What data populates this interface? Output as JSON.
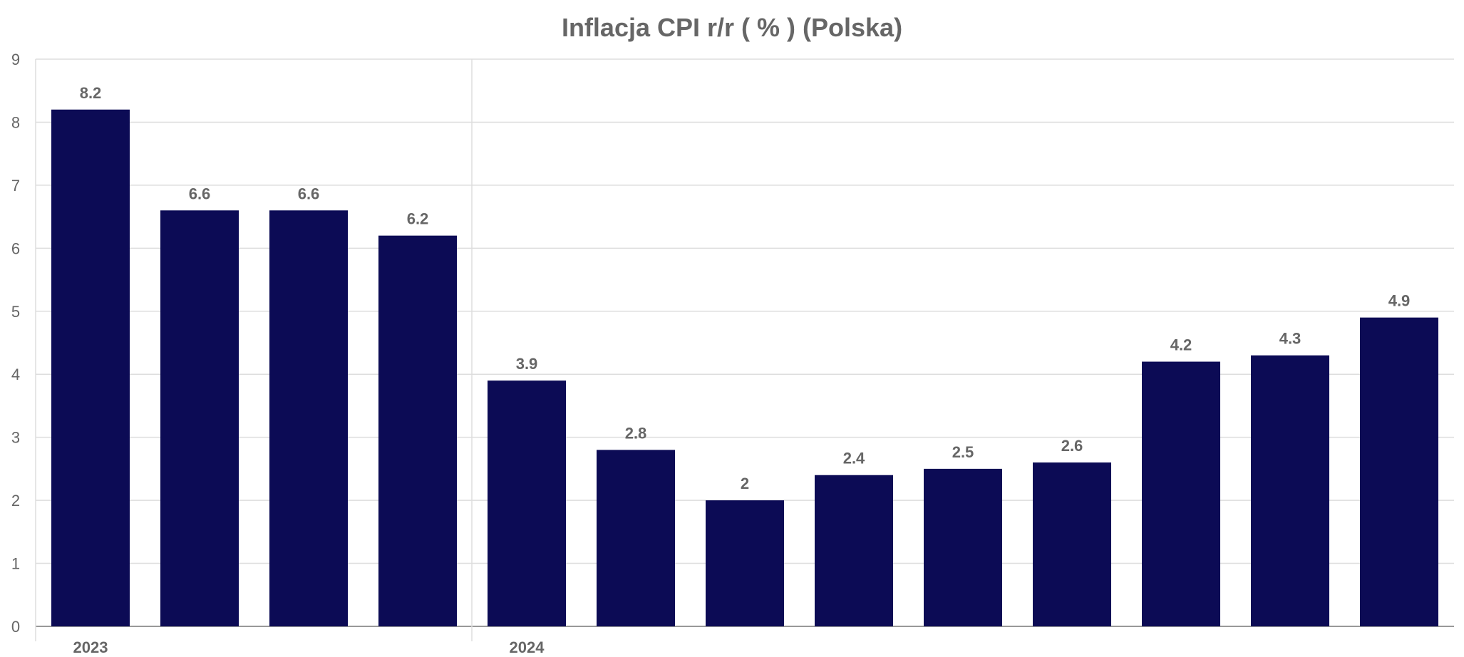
{
  "chart_data": {
    "type": "bar",
    "title": "Inflacja CPI r/r ( % ) (Polska)",
    "xlabel": "",
    "ylabel": "",
    "ylim": [
      0,
      9
    ],
    "yticks": [
      "0",
      "1",
      "2",
      "3",
      "4",
      "5",
      "6",
      "7",
      "8",
      "9"
    ],
    "x_year_labels": [
      {
        "label": "2023",
        "first_bar": 0
      },
      {
        "label": "2024",
        "first_bar": 4
      }
    ],
    "values": [
      8.2,
      6.6,
      6.6,
      6.2,
      3.9,
      2.8,
      2,
      2.4,
      2.5,
      2.6,
      4.2,
      4.3,
      4.9
    ],
    "value_labels": [
      "8.2",
      "6.6",
      "6.6",
      "6.2",
      "3.9",
      "2.8",
      "2",
      "2.4",
      "2.5",
      "2.6",
      "4.2",
      "4.3",
      "4.9"
    ],
    "grid": true,
    "legend": "none",
    "colors": {
      "bar": "#0c0b55",
      "text": "#666666",
      "grid": "#dddddd",
      "axis": "#999999"
    }
  }
}
